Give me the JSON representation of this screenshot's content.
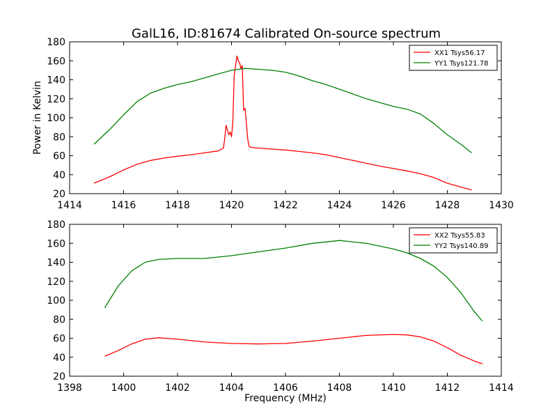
{
  "figure": {
    "title": "GalL16, ID:81674 Calibrated On-source spectrum"
  },
  "chart_data": [
    {
      "type": "line",
      "title": "GalL16, ID:81674 Calibrated On-source spectrum",
      "xlabel": "",
      "ylabel": "Power in Kelvin",
      "xlim": [
        1414,
        1430
      ],
      "ylim": [
        20,
        180
      ],
      "xticks": [
        1414,
        1416,
        1418,
        1420,
        1422,
        1424,
        1426,
        1428,
        1430
      ],
      "yticks": [
        20,
        40,
        60,
        80,
        100,
        120,
        140,
        160,
        180
      ],
      "legend": "top-right",
      "grid": false,
      "series": [
        {
          "name": "XX1 Tsys56.17",
          "color": "#ff0000",
          "x": [
            1414.9,
            1415.5,
            1416.0,
            1416.5,
            1417.0,
            1417.5,
            1418.0,
            1418.5,
            1419.0,
            1419.5,
            1419.7,
            1419.75,
            1419.8,
            1419.85,
            1419.9,
            1419.95,
            1420.0,
            1420.05,
            1420.1,
            1420.15,
            1420.2,
            1420.25,
            1420.3,
            1420.35,
            1420.4,
            1420.45,
            1420.5,
            1420.55,
            1420.6,
            1420.65,
            1420.7,
            1420.8,
            1421.0,
            1421.5,
            1422.0,
            1422.5,
            1423.0,
            1423.5,
            1424.0,
            1424.5,
            1425.0,
            1425.5,
            1426.0,
            1426.5,
            1427.0,
            1427.5,
            1428.0,
            1428.5,
            1428.9
          ],
          "y": [
            31,
            38,
            45,
            51,
            55,
            57.5,
            59.5,
            61,
            63,
            65,
            68,
            78,
            92,
            87,
            82,
            85,
            80,
            95,
            145,
            155,
            165,
            160,
            158,
            152,
            155,
            108,
            110,
            95,
            78,
            70,
            69,
            68.5,
            68,
            67,
            66,
            64.5,
            63,
            61,
            58,
            55,
            52,
            49,
            46.5,
            44,
            41,
            37,
            31,
            27,
            24
          ]
        },
        {
          "name": "YY1 Tsys121.78",
          "color": "#008000",
          "x": [
            1414.9,
            1415.5,
            1416.0,
            1416.5,
            1417.0,
            1417.5,
            1418.0,
            1418.5,
            1419.0,
            1419.5,
            1420.0,
            1420.5,
            1421.0,
            1421.5,
            1422.0,
            1422.5,
            1423.0,
            1423.5,
            1424.0,
            1424.5,
            1425.0,
            1425.5,
            1426.0,
            1426.5,
            1427.0,
            1427.5,
            1428.0,
            1428.5,
            1428.9
          ],
          "y": [
            72,
            88,
            103,
            117,
            126,
            131,
            135,
            138,
            142,
            146,
            150,
            152,
            151,
            150,
            148,
            144,
            139,
            135,
            130,
            125,
            120,
            116,
            112,
            109,
            104,
            94,
            82,
            72,
            63
          ]
        }
      ]
    },
    {
      "type": "line",
      "title": "",
      "xlabel": "Frequency (MHz)",
      "ylabel": "",
      "xlim": [
        1398,
        1414
      ],
      "ylim": [
        20,
        180
      ],
      "xticks": [
        1398,
        1400,
        1402,
        1404,
        1406,
        1408,
        1410,
        1412,
        1414
      ],
      "yticks": [
        20,
        40,
        60,
        80,
        100,
        120,
        140,
        160,
        180
      ],
      "legend": "top-right",
      "grid": false,
      "series": [
        {
          "name": "XX2 Tsys55.83",
          "color": "#ff0000",
          "x": [
            1399.3,
            1399.8,
            1400.3,
            1400.8,
            1401.3,
            1402.0,
            1403.0,
            1404.0,
            1405.0,
            1406.0,
            1407.0,
            1408.0,
            1409.0,
            1410.0,
            1410.5,
            1411.0,
            1411.5,
            1412.0,
            1412.5,
            1413.0,
            1413.3
          ],
          "y": [
            41,
            47,
            54,
            59,
            60.5,
            59,
            56,
            54.5,
            54,
            54.5,
            57,
            60,
            63,
            64,
            63.5,
            61.5,
            57,
            50,
            42,
            36,
            33
          ]
        },
        {
          "name": "YY2 Tsys140.89",
          "color": "#008000",
          "x": [
            1399.3,
            1399.8,
            1400.3,
            1400.8,
            1401.3,
            1402.0,
            1403.0,
            1404.0,
            1405.0,
            1406.0,
            1407.0,
            1408.0,
            1409.0,
            1410.0,
            1410.5,
            1411.0,
            1411.5,
            1412.0,
            1412.5,
            1413.0,
            1413.3
          ],
          "y": [
            92,
            115,
            131,
            140,
            143,
            144,
            144,
            147,
            151,
            155,
            160,
            163,
            160,
            154,
            150,
            144,
            136,
            124,
            108,
            88,
            78
          ]
        }
      ]
    }
  ]
}
